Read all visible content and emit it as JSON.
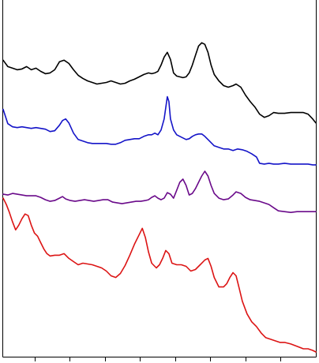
{
  "chart_data": {
    "type": "line",
    "title": "",
    "xlabel": "",
    "ylabel": "",
    "xlim": [
      0,
      400
    ],
    "ylim": [
      0,
      450
    ],
    "grid": false,
    "legend": "none",
    "x_ticks": [
      40,
      85,
      130,
      175,
      220,
      265,
      310,
      355
    ],
    "series": [
      {
        "color": "#000000",
        "points": [
          [
            0,
            76
          ],
          [
            6,
            84
          ],
          [
            12,
            86
          ],
          [
            18,
            88
          ],
          [
            24,
            87
          ],
          [
            30,
            84
          ],
          [
            36,
            88
          ],
          [
            42,
            86
          ],
          [
            48,
            90
          ],
          [
            54,
            93
          ],
          [
            60,
            92
          ],
          [
            66,
            88
          ],
          [
            72,
            78
          ],
          [
            78,
            76
          ],
          [
            84,
            80
          ],
          [
            90,
            88
          ],
          [
            96,
            95
          ],
          [
            102,
            99
          ],
          [
            108,
            102
          ],
          [
            114,
            104
          ],
          [
            120,
            106
          ],
          [
            126,
            105
          ],
          [
            132,
            104
          ],
          [
            138,
            102
          ],
          [
            144,
            104
          ],
          [
            150,
            106
          ],
          [
            156,
            105
          ],
          [
            162,
            102
          ],
          [
            168,
            100
          ],
          [
            174,
            97
          ],
          [
            180,
            94
          ],
          [
            186,
            92
          ],
          [
            190,
            93
          ],
          [
            194,
            92
          ],
          [
            198,
            90
          ],
          [
            202,
            82
          ],
          [
            206,
            72
          ],
          [
            210,
            66
          ],
          [
            214,
            75
          ],
          [
            218,
            92
          ],
          [
            222,
            96
          ],
          [
            226,
            97
          ],
          [
            230,
            98
          ],
          [
            234,
            97
          ],
          [
            238,
            92
          ],
          [
            242,
            82
          ],
          [
            246,
            70
          ],
          [
            250,
            58
          ],
          [
            254,
            54
          ],
          [
            258,
            56
          ],
          [
            262,
            66
          ],
          [
            266,
            82
          ],
          [
            270,
            94
          ],
          [
            276,
            102
          ],
          [
            282,
            108
          ],
          [
            288,
            110
          ],
          [
            294,
            108
          ],
          [
            298,
            106
          ],
          [
            304,
            110
          ],
          [
            310,
            120
          ],
          [
            316,
            128
          ],
          [
            322,
            135
          ],
          [
            328,
            144
          ],
          [
            334,
            148
          ],
          [
            340,
            146
          ],
          [
            346,
            142
          ],
          [
            352,
            143
          ],
          [
            360,
            143
          ],
          [
            368,
            142
          ],
          [
            376,
            142
          ],
          [
            384,
            142
          ],
          [
            390,
            144
          ],
          [
            396,
            150
          ],
          [
            400,
            155
          ]
        ]
      },
      {
        "color": "#1414c8",
        "points": [
          [
            0,
            138
          ],
          [
            6,
            156
          ],
          [
            12,
            160
          ],
          [
            18,
            161
          ],
          [
            24,
            160
          ],
          [
            30,
            161
          ],
          [
            36,
            162
          ],
          [
            42,
            161
          ],
          [
            48,
            162
          ],
          [
            54,
            163
          ],
          [
            60,
            166
          ],
          [
            66,
            165
          ],
          [
            72,
            158
          ],
          [
            76,
            152
          ],
          [
            80,
            150
          ],
          [
            84,
            155
          ],
          [
            90,
            168
          ],
          [
            96,
            176
          ],
          [
            102,
            178
          ],
          [
            108,
            180
          ],
          [
            114,
            181
          ],
          [
            120,
            181
          ],
          [
            126,
            181
          ],
          [
            132,
            181
          ],
          [
            138,
            182
          ],
          [
            144,
            182
          ],
          [
            150,
            180
          ],
          [
            156,
            177
          ],
          [
            162,
            176
          ],
          [
            168,
            175
          ],
          [
            174,
            175
          ],
          [
            180,
            172
          ],
          [
            186,
            170
          ],
          [
            190,
            170
          ],
          [
            194,
            168
          ],
          [
            198,
            170
          ],
          [
            202,
            164
          ],
          [
            206,
            150
          ],
          [
            210,
            122
          ],
          [
            212,
            128
          ],
          [
            214,
            150
          ],
          [
            218,
            164
          ],
          [
            222,
            170
          ],
          [
            226,
            172
          ],
          [
            230,
            174
          ],
          [
            234,
            176
          ],
          [
            238,
            175
          ],
          [
            242,
            172
          ],
          [
            246,
            170
          ],
          [
            250,
            169
          ],
          [
            254,
            169
          ],
          [
            258,
            172
          ],
          [
            264,
            178
          ],
          [
            270,
            184
          ],
          [
            276,
            186
          ],
          [
            282,
            188
          ],
          [
            288,
            188
          ],
          [
            294,
            190
          ],
          [
            300,
            188
          ],
          [
            306,
            189
          ],
          [
            312,
            191
          ],
          [
            318,
            194
          ],
          [
            324,
            198
          ],
          [
            328,
            206
          ],
          [
            334,
            207
          ],
          [
            340,
            206
          ],
          [
            346,
            207
          ],
          [
            352,
            207
          ],
          [
            360,
            206
          ],
          [
            368,
            207
          ],
          [
            376,
            207
          ],
          [
            384,
            207
          ],
          [
            390,
            207
          ],
          [
            396,
            208
          ],
          [
            400,
            208
          ]
        ]
      },
      {
        "color": "#6a0a8a",
        "points": [
          [
            0,
            245
          ],
          [
            6,
            246
          ],
          [
            12,
            244
          ],
          [
            18,
            245
          ],
          [
            24,
            246
          ],
          [
            30,
            247
          ],
          [
            36,
            247
          ],
          [
            42,
            247
          ],
          [
            48,
            249
          ],
          [
            54,
            252
          ],
          [
            60,
            254
          ],
          [
            66,
            253
          ],
          [
            72,
            250
          ],
          [
            76,
            248
          ],
          [
            80,
            251
          ],
          [
            86,
            253
          ],
          [
            92,
            254
          ],
          [
            98,
            253
          ],
          [
            104,
            252
          ],
          [
            110,
            253
          ],
          [
            116,
            254
          ],
          [
            122,
            253
          ],
          [
            128,
            252
          ],
          [
            134,
            252
          ],
          [
            140,
            255
          ],
          [
            146,
            256
          ],
          [
            152,
            257
          ],
          [
            158,
            256
          ],
          [
            164,
            255
          ],
          [
            170,
            254
          ],
          [
            176,
            254
          ],
          [
            182,
            253
          ],
          [
            186,
            252
          ],
          [
            190,
            249
          ],
          [
            194,
            247
          ],
          [
            198,
            250
          ],
          [
            202,
            252
          ],
          [
            206,
            250
          ],
          [
            210,
            243
          ],
          [
            214,
            245
          ],
          [
            218,
            250
          ],
          [
            222,
            240
          ],
          [
            226,
            230
          ],
          [
            230,
            226
          ],
          [
            234,
            234
          ],
          [
            238,
            246
          ],
          [
            242,
            244
          ],
          [
            246,
            238
          ],
          [
            250,
            230
          ],
          [
            254,
            222
          ],
          [
            258,
            216
          ],
          [
            262,
            222
          ],
          [
            266,
            234
          ],
          [
            270,
            244
          ],
          [
            276,
            250
          ],
          [
            282,
            252
          ],
          [
            288,
            251
          ],
          [
            294,
            246
          ],
          [
            298,
            242
          ],
          [
            304,
            244
          ],
          [
            310,
            249
          ],
          [
            316,
            252
          ],
          [
            322,
            253
          ],
          [
            328,
            254
          ],
          [
            334,
            256
          ],
          [
            340,
            258
          ],
          [
            346,
            262
          ],
          [
            352,
            266
          ],
          [
            360,
            267
          ],
          [
            368,
            268
          ],
          [
            376,
            267
          ],
          [
            384,
            267
          ],
          [
            390,
            267
          ],
          [
            396,
            267
          ],
          [
            400,
            267
          ]
        ]
      },
      {
        "color": "#dc1414",
        "points": [
          [
            0,
            250
          ],
          [
            4,
            258
          ],
          [
            8,
            268
          ],
          [
            12,
            280
          ],
          [
            16,
            290
          ],
          [
            20,
            284
          ],
          [
            24,
            276
          ],
          [
            28,
            270
          ],
          [
            32,
            272
          ],
          [
            36,
            284
          ],
          [
            40,
            294
          ],
          [
            44,
            298
          ],
          [
            48,
            306
          ],
          [
            52,
            314
          ],
          [
            56,
            320
          ],
          [
            60,
            323
          ],
          [
            66,
            322
          ],
          [
            72,
            322
          ],
          [
            78,
            320
          ],
          [
            84,
            326
          ],
          [
            90,
            330
          ],
          [
            96,
            334
          ],
          [
            102,
            332
          ],
          [
            108,
            333
          ],
          [
            114,
            334
          ],
          [
            120,
            336
          ],
          [
            126,
            338
          ],
          [
            132,
            342
          ],
          [
            138,
            348
          ],
          [
            144,
            350
          ],
          [
            150,
            345
          ],
          [
            156,
            335
          ],
          [
            162,
            322
          ],
          [
            168,
            308
          ],
          [
            174,
            296
          ],
          [
            178,
            288
          ],
          [
            182,
            300
          ],
          [
            186,
            318
          ],
          [
            190,
            332
          ],
          [
            196,
            338
          ],
          [
            200,
            334
          ],
          [
            204,
            326
          ],
          [
            208,
            316
          ],
          [
            212,
            320
          ],
          [
            216,
            332
          ],
          [
            222,
            334
          ],
          [
            228,
            334
          ],
          [
            234,
            336
          ],
          [
            240,
            342
          ],
          [
            246,
            340
          ],
          [
            252,
            334
          ],
          [
            258,
            328
          ],
          [
            262,
            326
          ],
          [
            266,
            336
          ],
          [
            270,
            350
          ],
          [
            276,
            362
          ],
          [
            282,
            362
          ],
          [
            286,
            358
          ],
          [
            290,
            350
          ],
          [
            294,
            344
          ],
          [
            298,
            348
          ],
          [
            302,
            364
          ],
          [
            306,
            380
          ],
          [
            312,
            396
          ],
          [
            318,
            406
          ],
          [
            324,
            412
          ],
          [
            330,
            420
          ],
          [
            336,
            426
          ],
          [
            342,
            428
          ],
          [
            348,
            430
          ],
          [
            354,
            432
          ],
          [
            360,
            432
          ],
          [
            368,
            434
          ],
          [
            376,
            437
          ],
          [
            384,
            440
          ],
          [
            390,
            440
          ],
          [
            396,
            442
          ],
          [
            400,
            444
          ]
        ]
      }
    ]
  }
}
